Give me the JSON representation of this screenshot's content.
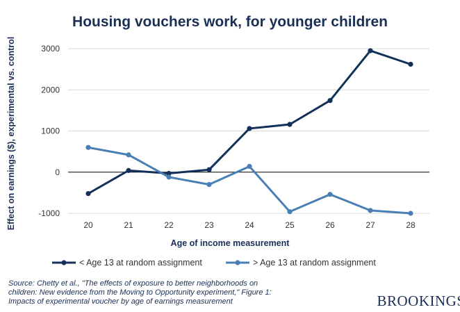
{
  "chart_data": {
    "type": "line",
    "title": "Housing vouchers work, for younger children",
    "xlabel": "Age of income measurement",
    "ylabel": "Effect on earnings ($), experimental vs. control",
    "x": [
      20,
      21,
      22,
      23,
      24,
      25,
      26,
      27,
      28
    ],
    "x_tick_labels": [
      "20",
      "21",
      "22",
      "23",
      "24",
      "25",
      "26",
      "27",
      "28"
    ],
    "y_ticks": [
      -1000,
      0,
      1000,
      2000,
      3000
    ],
    "y_tick_labels": [
      "-1000",
      "0",
      "1000",
      "2000",
      "3000"
    ],
    "ylim": [
      -1000,
      3000
    ],
    "grid": true,
    "legend_position": "bottom",
    "series": [
      {
        "name": "< Age 13 at random assignment",
        "color": "#12305a",
        "values": [
          -520,
          40,
          -30,
          60,
          1060,
          1160,
          1740,
          2950,
          2620
        ]
      },
      {
        "name": "> Age 13 at random assignment",
        "color": "#4a7fb5",
        "values": [
          600,
          420,
          -120,
          -300,
          140,
          -960,
          -540,
          -930,
          -1000
        ]
      }
    ]
  },
  "source_lines": [
    "Source: Chetty et al., \"The effects of exposure to better neighborhoods on",
    "children: New evidence from the Moving to Opportunity experiment,\" Figure 1:",
    "Impacts of experimental voucher by age of earnings measurement"
  ],
  "logo_text": "BROOKINGS"
}
